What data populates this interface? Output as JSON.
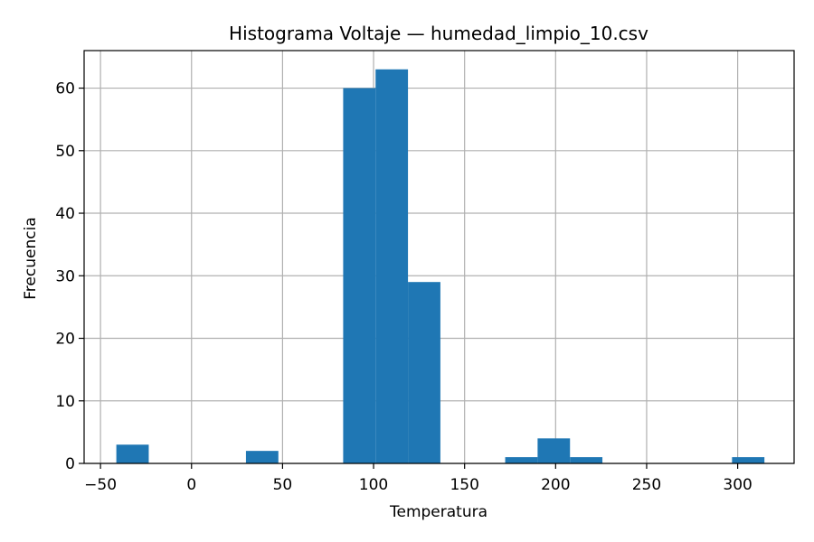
{
  "chart_data": {
    "type": "bar",
    "title": "Histograma Voltaje — humedad_limpio_10.csv",
    "xlabel": "Temperatura",
    "ylabel": "Frecuencia",
    "xlim": [
      -59,
      331
    ],
    "ylim": [
      0,
      66
    ],
    "grid": true,
    "bar_color": "#1f77b4",
    "x_ticks": [
      -50,
      0,
      50,
      100,
      150,
      200,
      250,
      300
    ],
    "y_ticks": [
      0,
      10,
      20,
      30,
      40,
      50,
      60
    ],
    "bins": [
      {
        "x0": -41.3,
        "x1": -23.5,
        "value": 3
      },
      {
        "x0": -23.5,
        "x1": -5.7,
        "value": 0
      },
      {
        "x0": -5.7,
        "x1": 12.1,
        "value": 0
      },
      {
        "x0": 12.1,
        "x1": 29.9,
        "value": 0
      },
      {
        "x0": 29.9,
        "x1": 47.7,
        "value": 2
      },
      {
        "x0": 47.7,
        "x1": 65.5,
        "value": 0
      },
      {
        "x0": 65.5,
        "x1": 83.3,
        "value": 0
      },
      {
        "x0": 83.3,
        "x1": 101.1,
        "value": 60
      },
      {
        "x0": 101.1,
        "x1": 118.9,
        "value": 63
      },
      {
        "x0": 118.9,
        "x1": 136.7,
        "value": 29
      },
      {
        "x0": 136.7,
        "x1": 154.5,
        "value": 0
      },
      {
        "x0": 154.5,
        "x1": 172.3,
        "value": 0
      },
      {
        "x0": 172.3,
        "x1": 190.1,
        "value": 1
      },
      {
        "x0": 190.1,
        "x1": 207.9,
        "value": 4
      },
      {
        "x0": 207.9,
        "x1": 225.7,
        "value": 1
      },
      {
        "x0": 225.7,
        "x1": 243.5,
        "value": 0
      },
      {
        "x0": 243.5,
        "x1": 261.3,
        "value": 0
      },
      {
        "x0": 261.3,
        "x1": 279.1,
        "value": 0
      },
      {
        "x0": 279.1,
        "x1": 296.9,
        "value": 0
      },
      {
        "x0": 296.9,
        "x1": 314.7,
        "value": 1
      }
    ]
  }
}
